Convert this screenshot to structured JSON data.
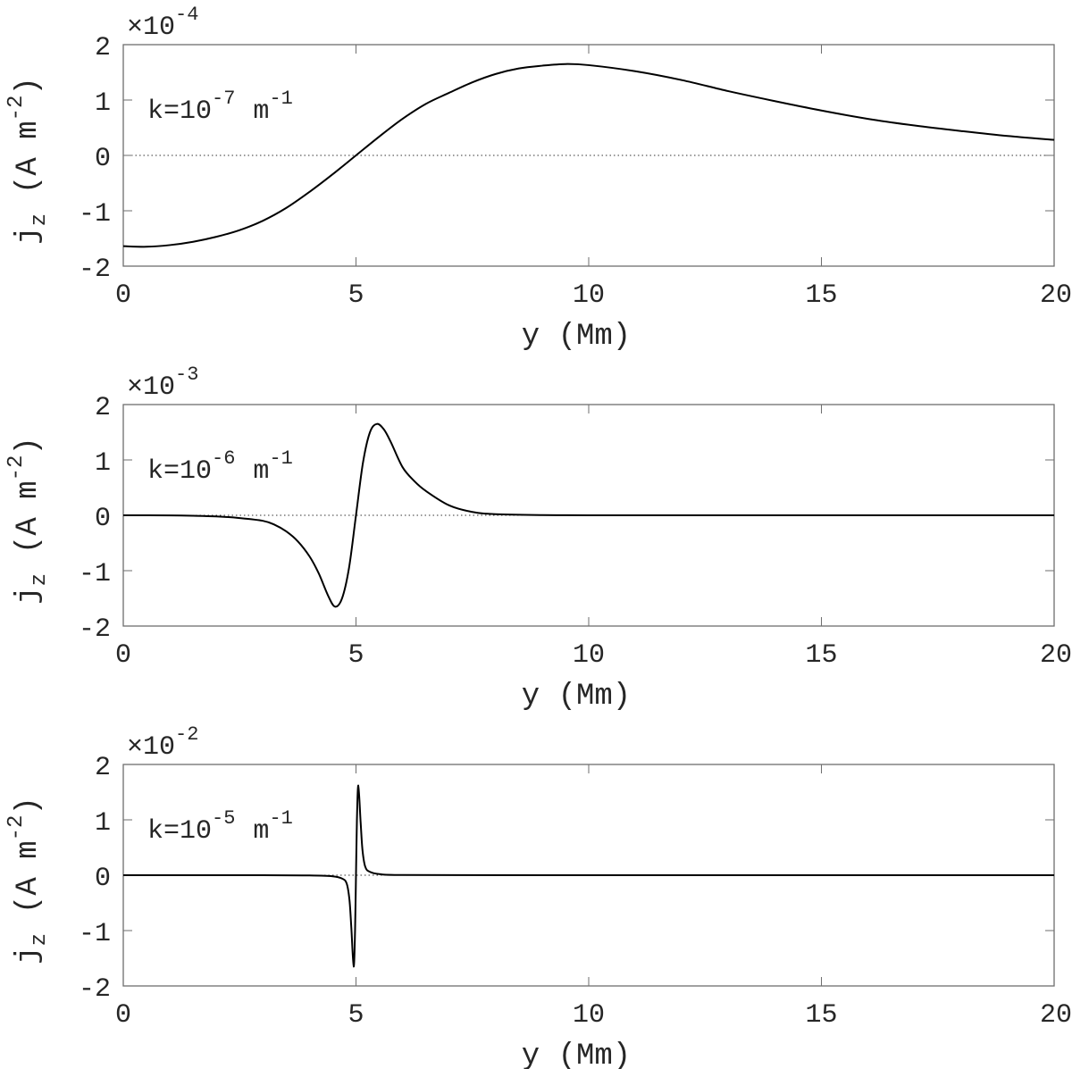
{
  "figure": {
    "panels_layout": "3 rows x 1 column, shared x-range",
    "axis_color": "#6e6e6e",
    "line_color": "#000000",
    "zero_line_color": "#333333"
  },
  "chart_data": [
    {
      "type": "line",
      "title": "",
      "annotation": {
        "base": "k=10",
        "exponent": "-7",
        "unit": "m",
        "unit_exponent": "-1"
      },
      "scale_factor": {
        "prefix": "×10",
        "exponent": "-4"
      },
      "xlabel": "y (Mm)",
      "ylabel": {
        "main": "j",
        "sub": "z",
        "unit_open": "(A m",
        "unit_exp": "-2",
        "unit_close": ")"
      },
      "xlim": [
        0,
        20
      ],
      "ylim": [
        -2,
        2
      ],
      "xticks": [
        0,
        5,
        10,
        15,
        20
      ],
      "yticks": [
        -2,
        -1,
        0,
        1,
        2
      ],
      "grid": false,
      "zero_line": "dotted",
      "series": [
        {
          "name": "j_z, k=1e-7",
          "x": [
            0,
            0.5,
            1,
            1.5,
            2,
            2.5,
            3,
            3.5,
            4,
            4.5,
            5,
            5.5,
            6,
            6.5,
            7,
            7.5,
            8,
            8.5,
            9,
            9.5,
            10,
            11,
            12,
            13,
            14,
            15,
            16,
            17,
            18,
            19,
            20
          ],
          "values": [
            -1.64,
            -1.65,
            -1.62,
            -1.56,
            -1.47,
            -1.35,
            -1.18,
            -0.95,
            -0.66,
            -0.34,
            0.0,
            0.34,
            0.66,
            0.93,
            1.13,
            1.32,
            1.47,
            1.57,
            1.62,
            1.65,
            1.63,
            1.52,
            1.36,
            1.16,
            0.98,
            0.81,
            0.66,
            0.54,
            0.44,
            0.35,
            0.28
          ]
        }
      ]
    },
    {
      "type": "line",
      "title": "",
      "annotation": {
        "base": "k=10",
        "exponent": "-6",
        "unit": "m",
        "unit_exponent": "-1"
      },
      "scale_factor": {
        "prefix": "×10",
        "exponent": "-3"
      },
      "xlabel": "y (Mm)",
      "ylabel": {
        "main": "j",
        "sub": "z",
        "unit_open": "(A m",
        "unit_exp": "-2",
        "unit_close": ")"
      },
      "xlim": [
        0,
        20
      ],
      "ylim": [
        -2,
        2
      ],
      "xticks": [
        0,
        5,
        10,
        15,
        20
      ],
      "yticks": [
        -2,
        -1,
        0,
        1,
        2
      ],
      "grid": false,
      "zero_line": "dotted",
      "series": [
        {
          "name": "j_z, k=1e-6",
          "x": [
            0,
            1,
            1.5,
            2,
            2.5,
            3,
            3.25,
            3.5,
            3.75,
            4,
            4.2,
            4.4,
            4.55,
            4.7,
            4.85,
            5,
            5.15,
            5.3,
            5.45,
            5.6,
            5.75,
            6,
            6.25,
            6.5,
            7,
            7.5,
            8,
            9,
            10,
            12,
            15,
            20
          ],
          "values": [
            0,
            -0.002,
            -0.008,
            -0.02,
            -0.05,
            -0.1,
            -0.17,
            -0.29,
            -0.47,
            -0.74,
            -1.05,
            -1.45,
            -1.65,
            -1.5,
            -0.95,
            0.0,
            0.95,
            1.5,
            1.65,
            1.55,
            1.32,
            0.87,
            0.62,
            0.44,
            0.18,
            0.06,
            0.02,
            0.004,
            0.001,
            0,
            0,
            0
          ]
        }
      ]
    },
    {
      "type": "line",
      "title": "",
      "annotation": {
        "base": "k=10",
        "exponent": "-5",
        "unit": "m",
        "unit_exponent": "-1"
      },
      "scale_factor": {
        "prefix": "×10",
        "exponent": "-2"
      },
      "xlabel": "y (Mm)",
      "ylabel": {
        "main": "j",
        "sub": "z",
        "unit_open": "(A m",
        "unit_exp": "-2",
        "unit_close": ")"
      },
      "xlim": [
        0,
        20
      ],
      "ylim": [
        -2,
        2
      ],
      "xticks": [
        0,
        5,
        10,
        15,
        20
      ],
      "yticks": [
        -2,
        -1,
        0,
        1,
        2
      ],
      "grid": false,
      "zero_line": "dotted",
      "series": [
        {
          "name": "j_z, k=1e-5",
          "x": [
            0,
            3,
            4,
            4.5,
            4.7,
            4.8,
            4.86,
            4.9,
            4.95,
            4.98,
            5.0,
            5.02,
            5.05,
            5.1,
            5.14,
            5.2,
            5.3,
            5.5,
            6,
            10,
            15,
            20
          ],
          "values": [
            0,
            0,
            -0.005,
            -0.02,
            -0.06,
            -0.15,
            -0.45,
            -0.95,
            -1.65,
            -1.0,
            0.0,
            1.0,
            1.62,
            0.95,
            0.45,
            0.15,
            0.06,
            0.02,
            0.003,
            0,
            0,
            0
          ]
        }
      ]
    }
  ]
}
